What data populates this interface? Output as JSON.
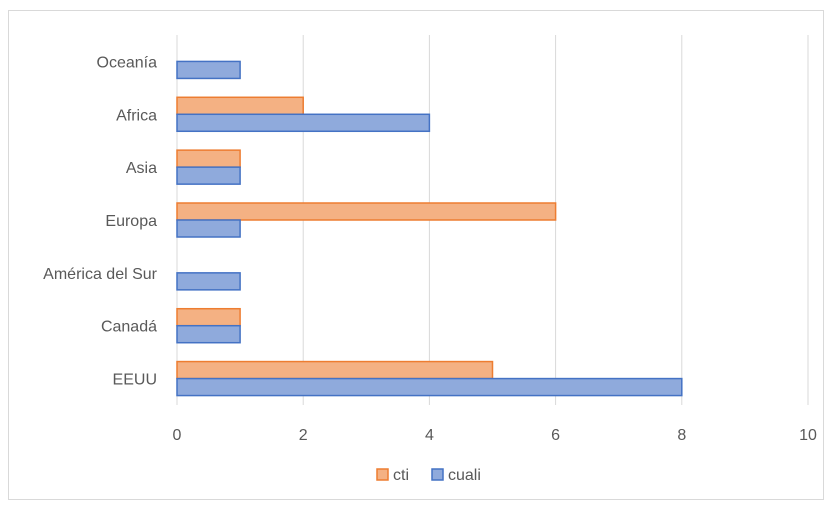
{
  "chart_data": {
    "type": "bar",
    "orientation": "horizontal",
    "categories": [
      "EEUU",
      "Canadá",
      "América del Sur",
      "Europa",
      "Asia",
      "Africa",
      "Oceanía"
    ],
    "series": [
      {
        "name": "cti",
        "values": [
          5,
          1,
          0,
          6,
          1,
          2,
          0
        ],
        "color": "#f4b183",
        "stroke": "#ed7d31"
      },
      {
        "name": "cuali",
        "values": [
          8,
          1,
          1,
          1,
          1,
          4,
          1
        ],
        "color": "#8faadc",
        "stroke": "#4472c4"
      }
    ],
    "xlim": [
      0,
      10
    ],
    "xticks": [
      0,
      2,
      4,
      6,
      8,
      10
    ],
    "grid": true,
    "legend": "bottom",
    "title": "",
    "xlabel": "",
    "ylabel": ""
  }
}
